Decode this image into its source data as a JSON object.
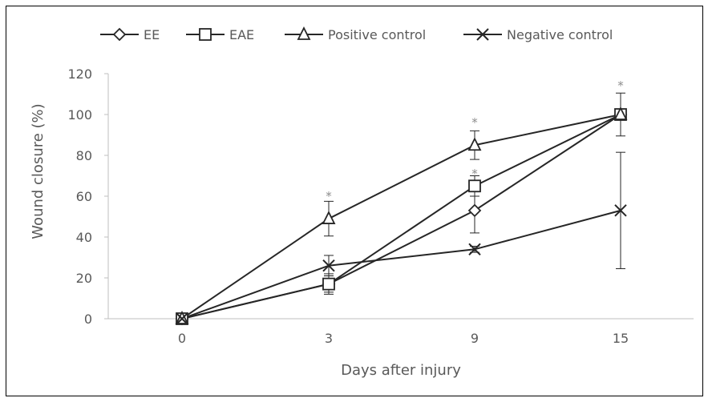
{
  "chart_data": {
    "type": "line",
    "title": "",
    "xlabel": "Days after injury",
    "ylabel": "Wound closure (%)",
    "ylim": [
      0,
      120
    ],
    "yticks": [
      0,
      20,
      40,
      60,
      80,
      100,
      120
    ],
    "categories": [
      "0",
      "3",
      "9",
      "15"
    ],
    "grid": false,
    "legend_position": "top",
    "series": [
      {
        "name": "EE",
        "marker": "diamond",
        "values": [
          0,
          17,
          53,
          100
        ],
        "error": [
          0,
          5,
          11,
          2
        ]
      },
      {
        "name": "EAE",
        "marker": "square",
        "values": [
          0,
          17,
          65,
          100
        ],
        "error": [
          0,
          4,
          5,
          2
        ]
      },
      {
        "name": "Positive control",
        "marker": "triangle",
        "values": [
          0,
          49,
          85,
          100
        ],
        "error": [
          0,
          8.5,
          7,
          10.5
        ]
      },
      {
        "name": "Negative control",
        "marker": "x",
        "values": [
          0,
          26,
          34,
          53
        ],
        "error": [
          0,
          5,
          1.5,
          28.5
        ]
      }
    ],
    "annotations": [
      {
        "x": "3",
        "y": 62,
        "text": "*"
      },
      {
        "x": "9",
        "y": 98,
        "text": "*"
      },
      {
        "x": "9",
        "y": 73,
        "text": "*"
      },
      {
        "x": "15",
        "y": 116,
        "text": "*"
      }
    ],
    "colors": {
      "line": "#262626",
      "text": "#595959",
      "axis": "#bfbfbf",
      "annotation": "#8c8c8c"
    }
  }
}
